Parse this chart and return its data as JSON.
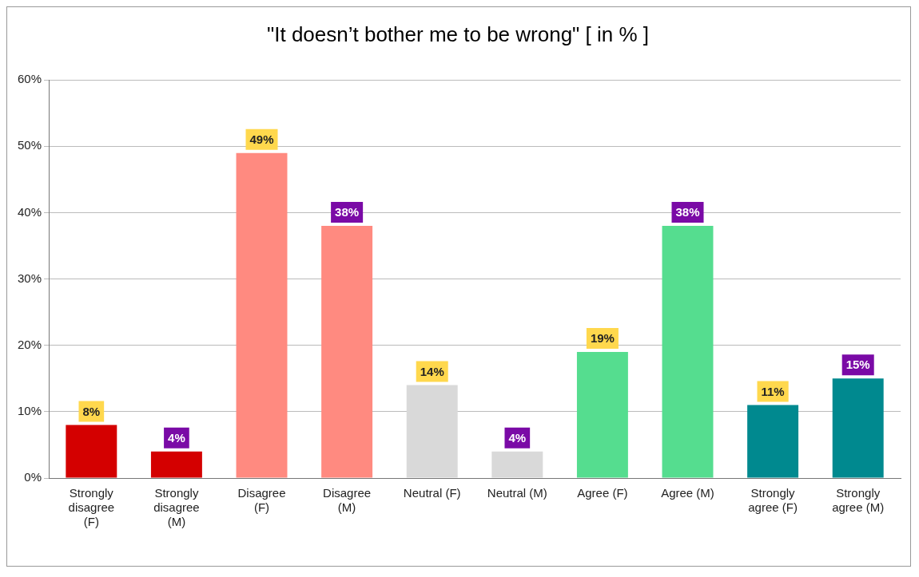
{
  "chart_data": {
    "type": "bar",
    "title": "\"It doesn’t bother me to be wrong\" [ in % ]",
    "categories": [
      "Strongly disagree (F)",
      "Strongly disagree (M)",
      "Disagree (F)",
      "Disagree (M)",
      "Neutral (F)",
      "Neutral (M)",
      "Agree (F)",
      "Agree (M)",
      "Strongly agree (F)",
      "Strongly agree (M)"
    ],
    "values": [
      8,
      4,
      49,
      38,
      14,
      4,
      19,
      38,
      11,
      15
    ],
    "colors": [
      "#d40000",
      "#d40000",
      "#ff8a80",
      "#ff8a80",
      "#d9d9d9",
      "#d9d9d9",
      "#55dd8f",
      "#55dd8f",
      "#00898f",
      "#00898f"
    ],
    "value_labels": [
      "8%",
      "4%",
      "49%",
      "38%",
      "14%",
      "4%",
      "19%",
      "38%",
      "11%",
      "15%"
    ],
    "ylim": [
      0,
      60
    ],
    "yticks": [
      {
        "value": 0,
        "label": "0%"
      },
      {
        "value": 10,
        "label": "10%"
      },
      {
        "value": 20,
        "label": "20%"
      },
      {
        "value": 30,
        "label": "30%"
      },
      {
        "value": 40,
        "label": "40%"
      },
      {
        "value": 50,
        "label": "50%"
      },
      {
        "value": 60,
        "label": "60%"
      }
    ],
    "grid": "y",
    "legend": false
  }
}
